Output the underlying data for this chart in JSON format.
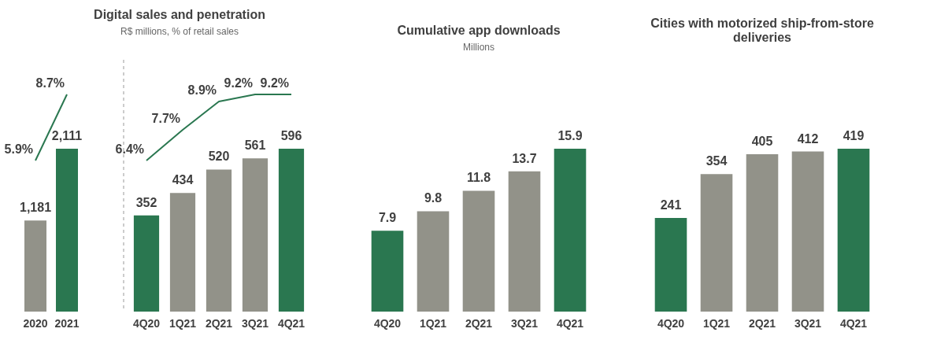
{
  "chart_data": [
    {
      "type": "bar",
      "categories": [
        "2020",
        "2021"
      ],
      "series": [
        {
          "type": "bar",
          "colors": [
            "#929289",
            "#2a7750"
          ],
          "values": [
            1181,
            2111
          ],
          "value_labels": [
            "1,181",
            "2,111"
          ]
        },
        {
          "type": "line",
          "axis": "y2",
          "color": "#2a7750",
          "values": [
            5.9,
            8.7
          ],
          "value_labels": [
            "5.9%",
            "8.7%"
          ]
        }
      ]
    },
    {
      "type": "bar",
      "title": "Digital sales and penetration",
      "subtitle": "R$ millions, % of retail sales",
      "categories": [
        "4Q20",
        "1Q21",
        "2Q21",
        "3Q21",
        "4Q21"
      ],
      "series": [
        {
          "type": "bar",
          "colors": [
            "#2a7750",
            "#929289",
            "#929289",
            "#929289",
            "#2a7750"
          ],
          "values": [
            352,
            434,
            520,
            561,
            596
          ],
          "value_labels": [
            "352",
            "434",
            "520",
            "561",
            "596"
          ]
        },
        {
          "type": "line",
          "axis": "y2",
          "color": "#2a7750",
          "values": [
            6.4,
            7.7,
            8.9,
            9.2,
            9.2
          ],
          "value_labels": [
            "6.4%",
            "7.7%",
            "8.9%",
            "9.2%",
            "9.2%"
          ]
        }
      ]
    },
    {
      "type": "bar",
      "title": "Cumulative app downloads",
      "subtitle": "Millions",
      "categories": [
        "4Q20",
        "1Q21",
        "2Q21",
        "3Q21",
        "4Q21"
      ],
      "data_labels": true,
      "series": [
        {
          "colors": [
            "#2a7750",
            "#929289",
            "#929289",
            "#929289",
            "#2a7750"
          ],
          "values": [
            7.9,
            9.8,
            11.8,
            13.7,
            15.9
          ]
        }
      ]
    },
    {
      "type": "bar",
      "title": "Cities with motorized ship-from-store deliveries",
      "categories": [
        "4Q20",
        "1Q21",
        "2Q21",
        "3Q21",
        "4Q21"
      ],
      "data_labels": true,
      "series": [
        {
          "colors": [
            "#2a7750",
            "#929289",
            "#929289",
            "#929289",
            "#2a7750"
          ],
          "values": [
            241,
            354,
            405,
            412,
            419
          ]
        }
      ]
    }
  ]
}
